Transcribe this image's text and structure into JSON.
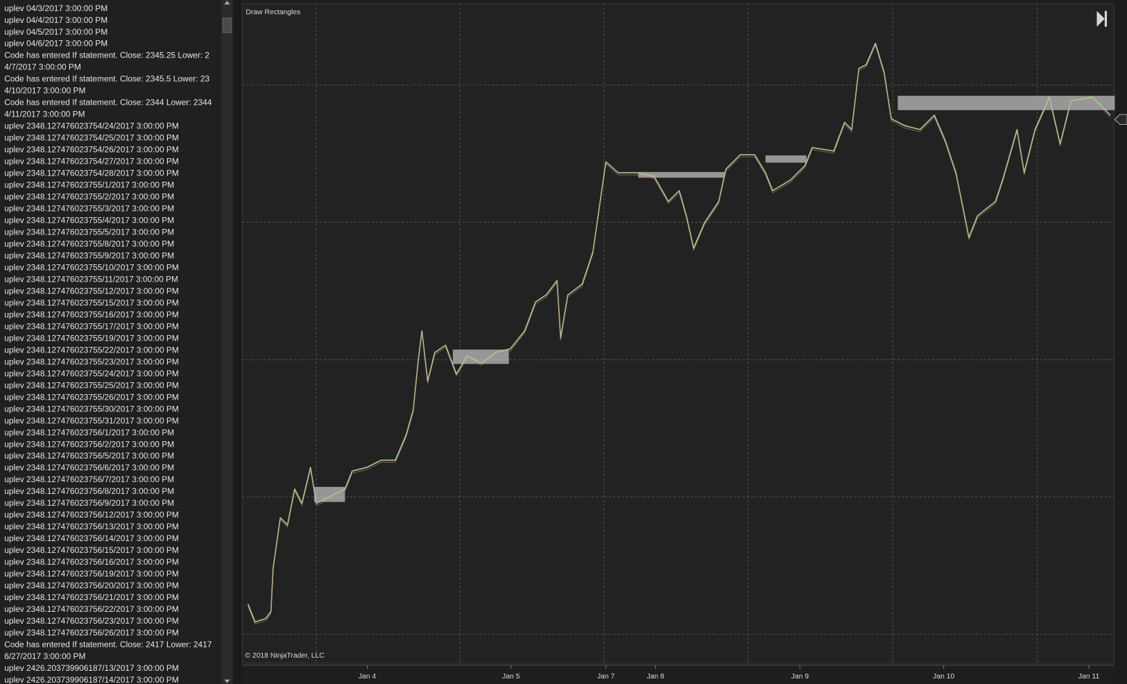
{
  "log": {
    "lines": [
      "uplev 04/3/2017 3:00:00 PM",
      "uplev 04/4/2017 3:00:00 PM",
      "uplev 04/5/2017 3:00:00 PM",
      "uplev 04/6/2017 3:00:00 PM",
      "Code has entered If statement. Close: 2345.25 Lower: 2",
      "4/7/2017 3:00:00 PM",
      "Code has entered If statement. Close: 2345.5 Lower: 23",
      "4/10/2017 3:00:00 PM",
      "Code has entered If statement. Close: 2344 Lower: 2344",
      "4/11/2017 3:00:00 PM",
      "uplev 2348.127476023754/24/2017 3:00:00 PM",
      "uplev 2348.127476023754/25/2017 3:00:00 PM",
      "uplev 2348.127476023754/26/2017 3:00:00 PM",
      "uplev 2348.127476023754/27/2017 3:00:00 PM",
      "uplev 2348.127476023754/28/2017 3:00:00 PM",
      "uplev 2348.127476023755/1/2017 3:00:00 PM",
      "uplev 2348.127476023755/2/2017 3:00:00 PM",
      "uplev 2348.127476023755/3/2017 3:00:00 PM",
      "uplev 2348.127476023755/4/2017 3:00:00 PM",
      "uplev 2348.127476023755/5/2017 3:00:00 PM",
      "uplev 2348.127476023755/8/2017 3:00:00 PM",
      "uplev 2348.127476023755/9/2017 3:00:00 PM",
      "uplev 2348.127476023755/10/2017 3:00:00 PM",
      "uplev 2348.127476023755/11/2017 3:00:00 PM",
      "uplev 2348.127476023755/12/2017 3:00:00 PM",
      "uplev 2348.127476023755/15/2017 3:00:00 PM",
      "uplev 2348.127476023755/16/2017 3:00:00 PM",
      "uplev 2348.127476023755/17/2017 3:00:00 PM",
      "uplev 2348.127476023755/19/2017 3:00:00 PM",
      "uplev 2348.127476023755/22/2017 3:00:00 PM",
      "uplev 2348.127476023755/23/2017 3:00:00 PM",
      "uplev 2348.127476023755/24/2017 3:00:00 PM",
      "uplev 2348.127476023755/25/2017 3:00:00 PM",
      "uplev 2348.127476023755/26/2017 3:00:00 PM",
      "uplev 2348.127476023755/30/2017 3:00:00 PM",
      "uplev 2348.127476023755/31/2017 3:00:00 PM",
      "uplev 2348.127476023756/1/2017 3:00:00 PM",
      "uplev 2348.127476023756/2/2017 3:00:00 PM",
      "uplev 2348.127476023756/5/2017 3:00:00 PM",
      "uplev 2348.127476023756/6/2017 3:00:00 PM",
      "uplev 2348.127476023756/7/2017 3:00:00 PM",
      "uplev 2348.127476023756/8/2017 3:00:00 PM",
      "uplev 2348.127476023756/9/2017 3:00:00 PM",
      "uplev 2348.127476023756/12/2017 3:00:00 PM",
      "uplev 2348.127476023756/13/2017 3:00:00 PM",
      "uplev 2348.127476023756/14/2017 3:00:00 PM",
      "uplev 2348.127476023756/15/2017 3:00:00 PM",
      "uplev 2348.127476023756/16/2017 3:00:00 PM",
      "uplev 2348.127476023756/19/2017 3:00:00 PM",
      "uplev 2348.127476023756/20/2017 3:00:00 PM",
      "uplev 2348.127476023756/21/2017 3:00:00 PM",
      "uplev 2348.127476023756/22/2017 3:00:00 PM",
      "uplev 2348.127476023756/23/2017 3:00:00 PM",
      "uplev 2348.127476023756/26/2017 3:00:00 PM",
      "Code has entered If statement. Close: 2417 Lower: 2417",
      "6/27/2017 3:00:00 PM",
      "uplev 2426.203739906187/13/2017 3:00:00 PM",
      "uplev 2426.203739906187/14/2017 3:00:00 PM"
    ]
  },
  "chart": {
    "title": "Draw Rectangles",
    "copyright": "© 2018 NinjaTrader, LLC",
    "x_labels": [
      "Jan 4",
      "Jan 5",
      "Jan 7",
      "Jan 8",
      "Jan 9",
      "Jan 10",
      "Jan 11"
    ]
  }
}
